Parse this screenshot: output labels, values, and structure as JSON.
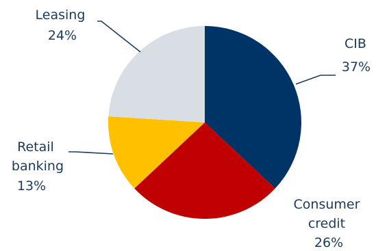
{
  "chart_data": {
    "type": "pie",
    "title": "",
    "legend": "none",
    "start_angle_deg": 0,
    "direction": "clockwise",
    "slices": [
      {
        "name": "CIB",
        "label_lines": [
          "CIB"
        ],
        "value": 37,
        "value_label": "37%",
        "color": "#003366"
      },
      {
        "name": "Consumer credit",
        "label_lines": [
          "Consumer",
          "credit"
        ],
        "value": 26,
        "value_label": "26%",
        "color": "#c00000"
      },
      {
        "name": "Retail banking",
        "label_lines": [
          "Retail",
          "banking"
        ],
        "value": 13,
        "value_label": "13%",
        "color": "#ffc000"
      },
      {
        "name": "Leasing",
        "label_lines": [
          "Leasing"
        ],
        "value": 24,
        "value_label": "24%",
        "color": "#d9dee5"
      }
    ]
  }
}
